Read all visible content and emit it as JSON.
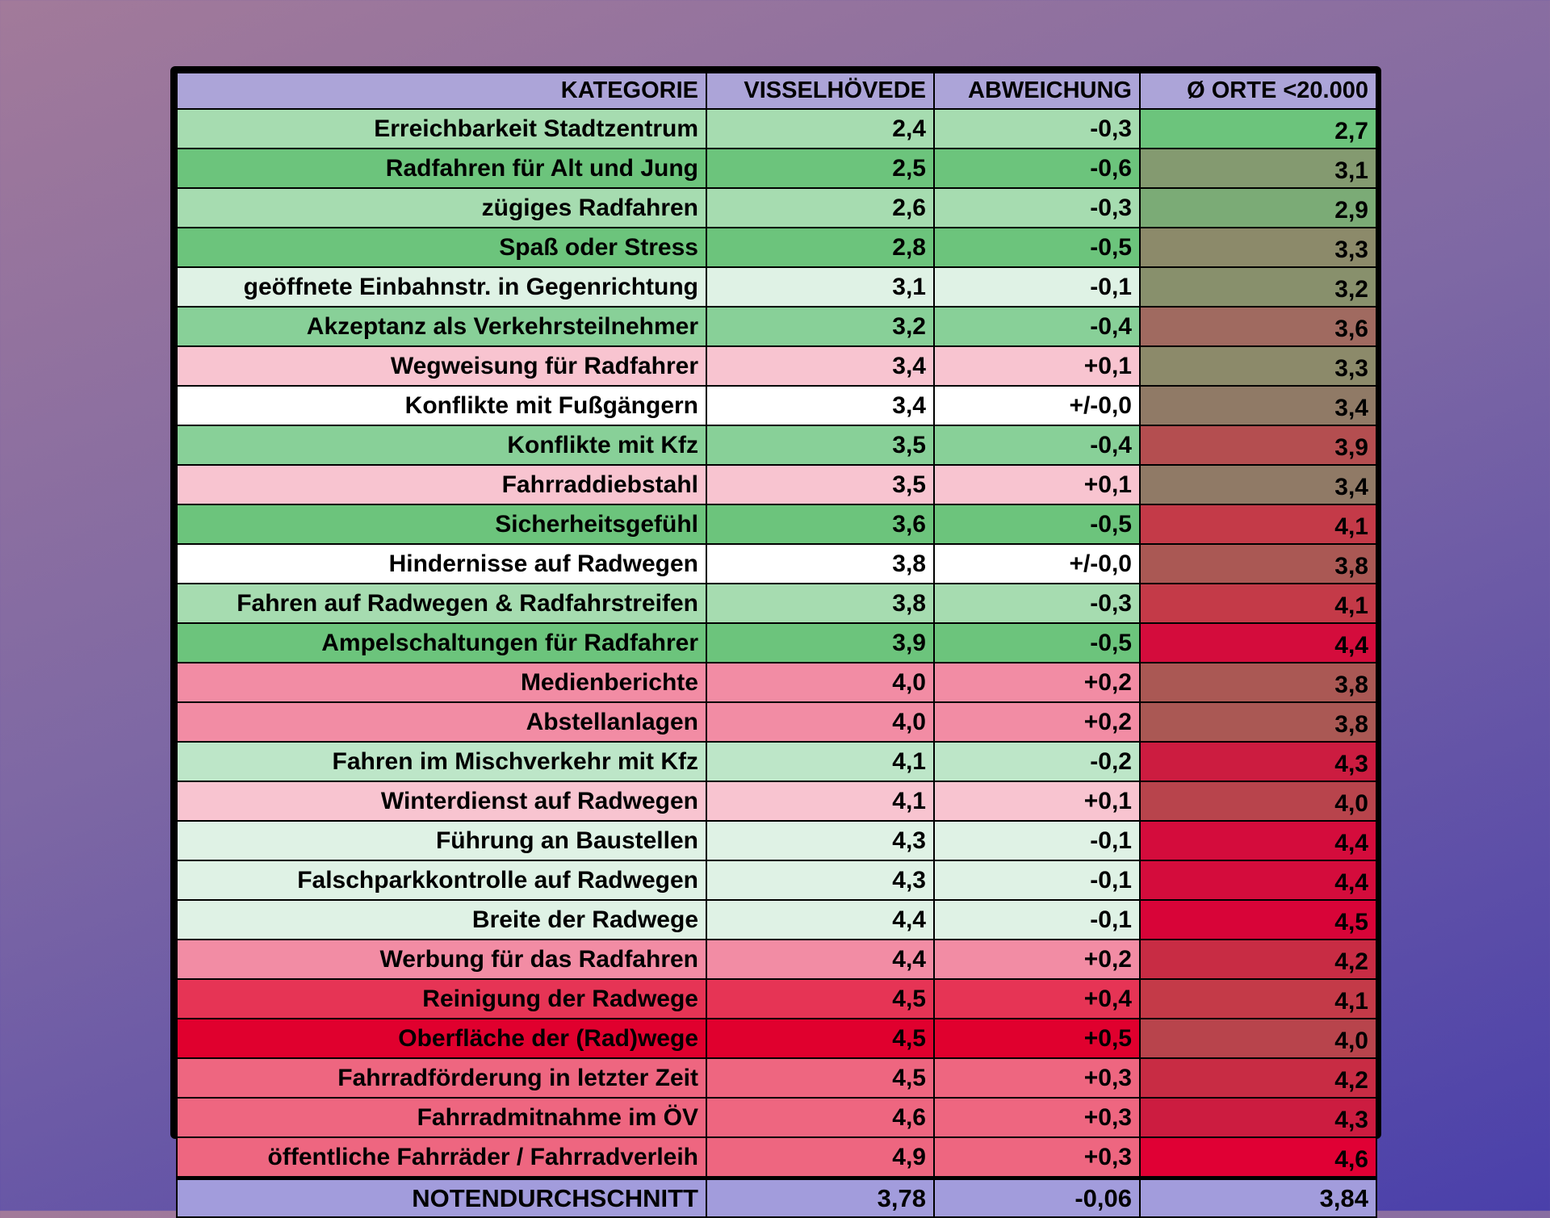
{
  "headers": [
    "KATEGORIE",
    "VISSELHÖVEDE",
    "ABWEICHUNG",
    "Ø ORTE <20.000"
  ],
  "rows": [
    {
      "k": "Erreichbarkeit Stadtzentrum",
      "v": "2,4",
      "a": "-0,3",
      "o": "2,7",
      "c": "#a6dcb0",
      "oc": "#6cc47c"
    },
    {
      "k": "Radfahren für Alt und Jung",
      "v": "2,5",
      "a": "-0,6",
      "o": "3,1",
      "c": "#6cc47c",
      "oc": "#849a70"
    },
    {
      "k": "zügiges Radfahren",
      "v": "2,6",
      "a": "-0,3",
      "o": "2,9",
      "c": "#a6dcb0",
      "oc": "#7bab76"
    },
    {
      "k": "Spaß oder Stress",
      "v": "2,8",
      "a": "-0,5",
      "o": "3,3",
      "c": "#6cc47c",
      "oc": "#8c8a6a"
    },
    {
      "k": "geöffnete Einbahnstr. in Gegenrichtung",
      "v": "3,1",
      "a": "-0,1",
      "o": "3,2",
      "c": "#dff2e5",
      "oc": "#88906c"
    },
    {
      "k": "Akzeptanz als Verkehrsteilnehmer",
      "v": "3,2",
      "a": "-0,4",
      "o": "3,6",
      "c": "#88d098",
      "oc": "#a06a60"
    },
    {
      "k": "Wegweisung für Radfahrer",
      "v": "3,4",
      "a": "+0,1",
      "o": "3,3",
      "c": "#f8c4d0",
      "oc": "#8c8a6a"
    },
    {
      "k": "Konflikte mit Fußgängern",
      "v": "3,4",
      "a": "+/-0,0",
      "o": "3,4",
      "c": "#ffffff",
      "oc": "#907a66"
    },
    {
      "k": "Konflikte mit Kfz",
      "v": "3,5",
      "a": "-0,4",
      "o": "3,9",
      "c": "#88d098",
      "oc": "#b44e50"
    },
    {
      "k": "Fahrraddiebstahl",
      "v": "3,5",
      "a": "+0,1",
      "o": "3,4",
      "c": "#f8c4d0",
      "oc": "#907a66"
    },
    {
      "k": "Sicherheitsgefühl",
      "v": "3,6",
      "a": "-0,5",
      "o": "4,1",
      "c": "#6cc47c",
      "oc": "#c43a48"
    },
    {
      "k": "Hindernisse auf Radwegen",
      "v": "3,8",
      "a": "+/-0,0",
      "o": "3,8",
      "c": "#ffffff",
      "oc": "#aa5854"
    },
    {
      "k": "Fahren auf Radwegen & Radfahrstreifen",
      "v": "3,8",
      "a": "-0,3",
      "o": "4,1",
      "c": "#a6dcb0",
      "oc": "#c43a48"
    },
    {
      "k": "Ampelschaltungen für Radfahrer",
      "v": "3,9",
      "a": "-0,5",
      "o": "4,4",
      "c": "#6cc47c",
      "oc": "#d40c3c"
    },
    {
      "k": "Medienberichte",
      "v": "4,0",
      "a": "+0,2",
      "o": "3,8",
      "c": "#f28ca4",
      "oc": "#aa5854"
    },
    {
      "k": "Abstellanlagen",
      "v": "4,0",
      "a": "+0,2",
      "o": "3,8",
      "c": "#f28ca4",
      "oc": "#aa5854"
    },
    {
      "k": "Fahren im Mischverkehr mit Kfz",
      "v": "4,1",
      "a": "-0,2",
      "o": "4,3",
      "c": "#bde6c8",
      "oc": "#cc1c40"
    },
    {
      "k": "Winterdienst auf Radwegen",
      "v": "4,1",
      "a": "+0,1",
      "o": "4,0",
      "c": "#f8c4d0",
      "oc": "#b8444c"
    },
    {
      "k": "Führung an Baustellen",
      "v": "4,3",
      "a": "-0,1",
      "o": "4,4",
      "c": "#dff2e5",
      "oc": "#d40c3c"
    },
    {
      "k": "Falschparkkontrolle auf Radwegen",
      "v": "4,3",
      "a": "-0,1",
      "o": "4,4",
      "c": "#dff2e5",
      "oc": "#d40c3c"
    },
    {
      "k": "Breite der Radwege",
      "v": "4,4",
      "a": "-0,1",
      "o": "4,5",
      "c": "#dff2e5",
      "oc": "#d80438"
    },
    {
      "k": "Werbung für das Radfahren",
      "v": "4,4",
      "a": "+0,2",
      "o": "4,2",
      "c": "#f28ca4",
      "oc": "#c82c44"
    },
    {
      "k": "Reinigung der Radwege",
      "v": "4,5",
      "a": "+0,4",
      "o": "4,1",
      "c": "#e63455",
      "oc": "#c43a48"
    },
    {
      "k": "Oberfläche der (Rad)wege",
      "v": "4,5",
      "a": "+0,5",
      "o": "4,0",
      "c": "#e0002e",
      "oc": "#b8444c"
    },
    {
      "k": "Fahrradförderung in letzter Zeit",
      "v": "4,5",
      "a": "+0,3",
      "o": "4,2",
      "c": "#ee6680",
      "oc": "#c82c44"
    },
    {
      "k": "Fahrradmitnahme im ÖV",
      "v": "4,6",
      "a": "+0,3",
      "o": "4,3",
      "c": "#ee6680",
      "oc": "#cc1c40"
    },
    {
      "k": "öffentliche Fahrräder / Fahrradverleih",
      "v": "4,9",
      "a": "+0,3",
      "o": "4,6",
      "c": "#ee6680",
      "oc": "#e00034"
    }
  ],
  "footer": {
    "k": "NOTENDURCHSCHNITT",
    "v": "3,78",
    "a": "-0,06",
    "o": "3,84"
  }
}
